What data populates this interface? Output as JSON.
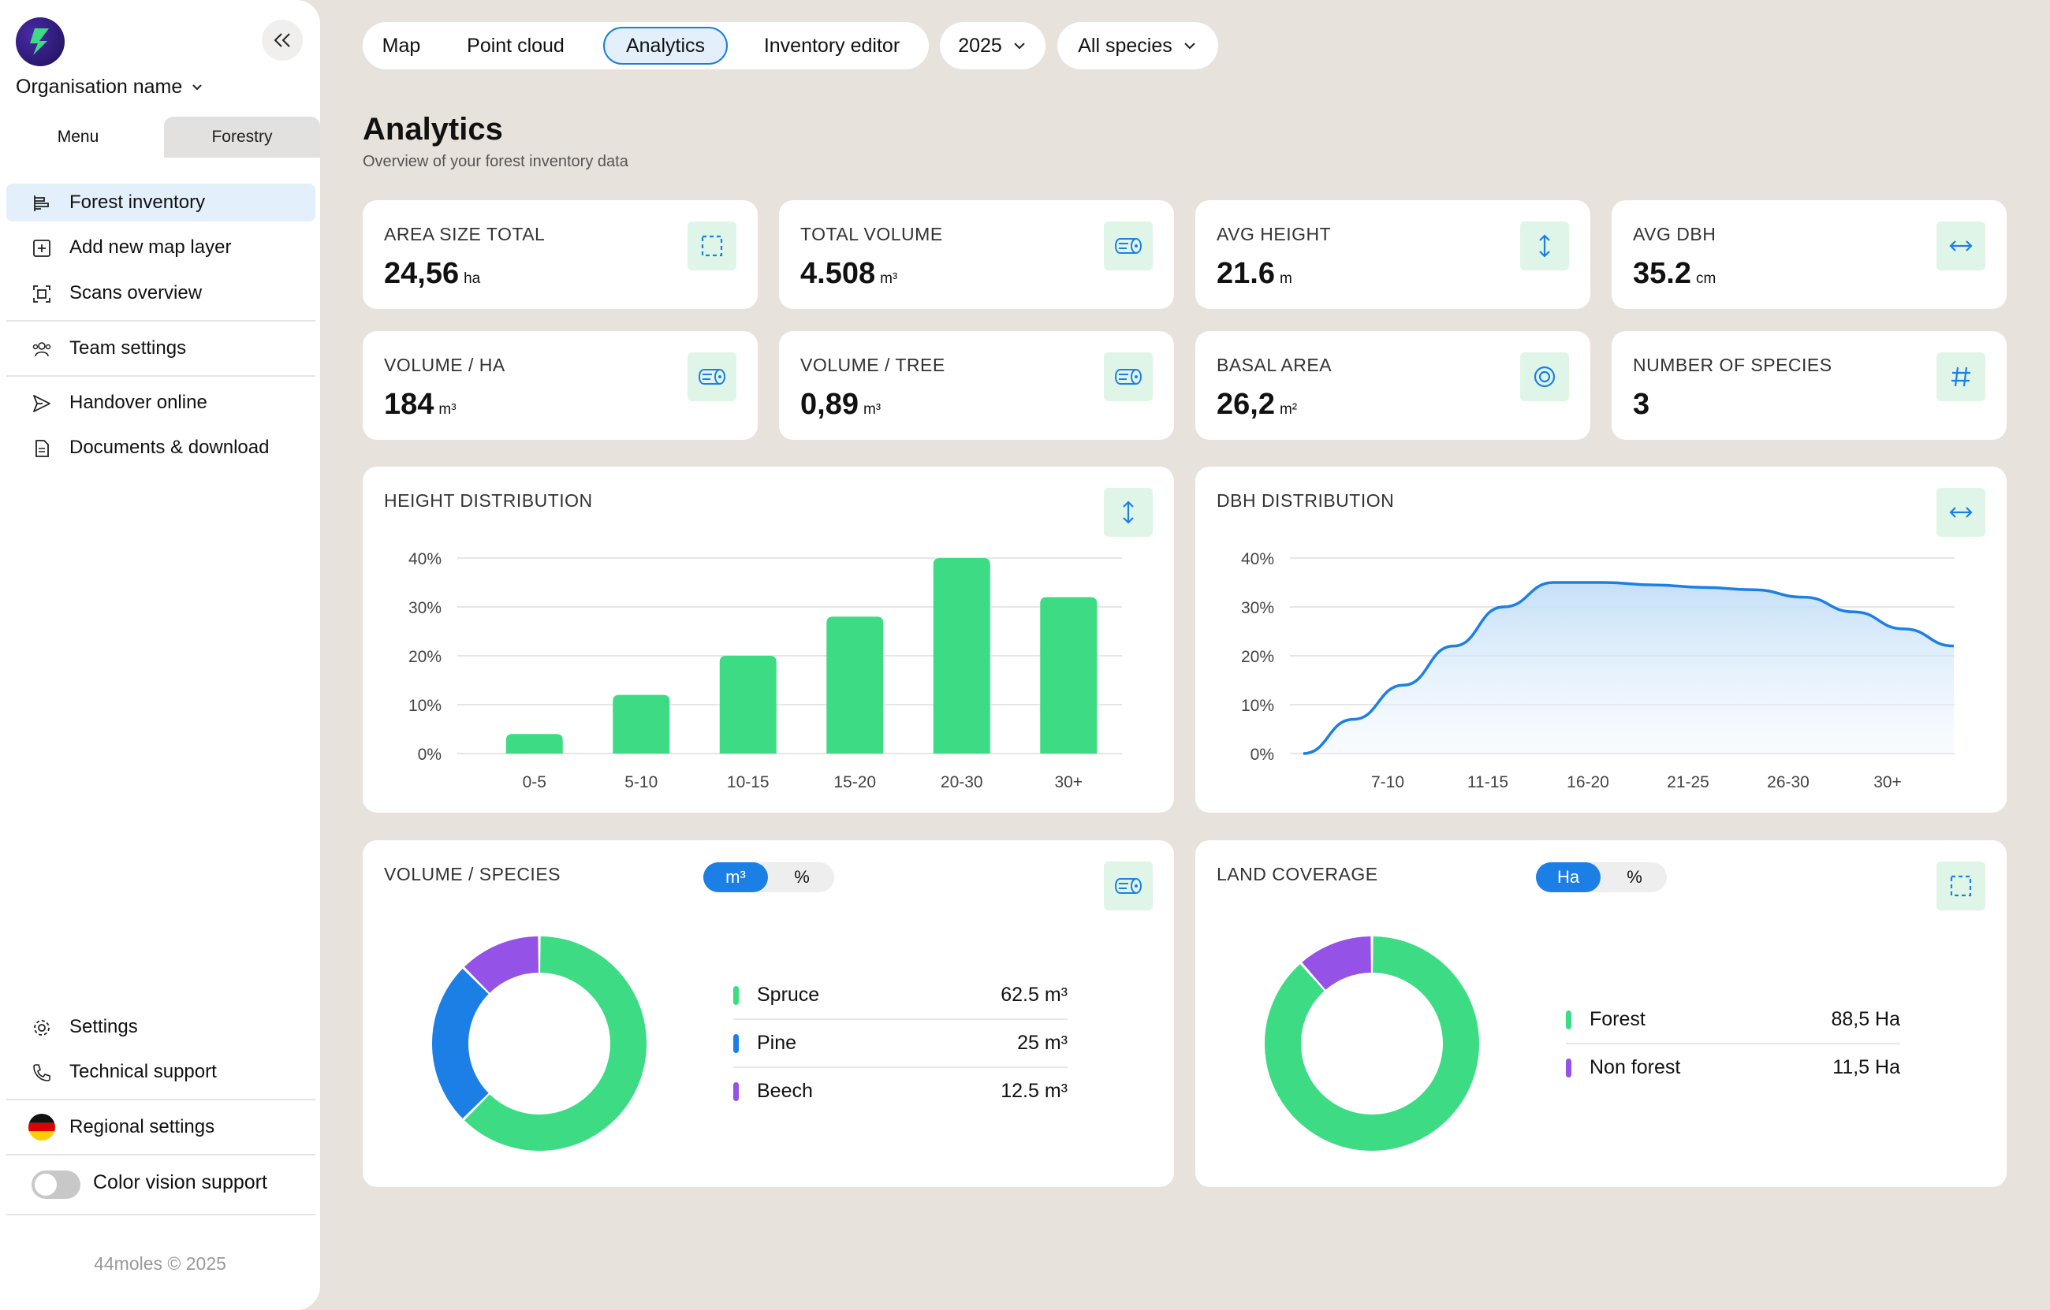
{
  "sidebar": {
    "org_name": "Organisation name",
    "tabs": [
      {
        "label": "Menu"
      },
      {
        "label": "Forestry"
      }
    ],
    "items": [
      {
        "label": "Forest inventory",
        "icon": "forest-inventory-icon"
      },
      {
        "label": "Add new map layer",
        "icon": "add-layer-icon"
      },
      {
        "label": "Scans overview",
        "icon": "scan-icon"
      },
      {
        "label": "Team settings",
        "icon": "team-icon"
      },
      {
        "label": "Handover online",
        "icon": "send-icon"
      },
      {
        "label": "Documents & download",
        "icon": "documents-icon"
      },
      {
        "label": "Settings",
        "icon": "gear-icon"
      },
      {
        "label": "Technical support",
        "icon": "phone-icon"
      },
      {
        "label": "Regional settings",
        "icon": "german-flag-icon"
      },
      {
        "label": "Color vision support",
        "icon": "toggle"
      }
    ],
    "copyright": "44moles © 2025"
  },
  "topnav": {
    "tabs": [
      {
        "label": "Map"
      },
      {
        "label": "Point cloud"
      },
      {
        "label": "Analytics"
      },
      {
        "label": "Inventory editor"
      }
    ],
    "year": "2025",
    "species": "All species"
  },
  "header": {
    "title": "Analytics",
    "subtitle": "Overview of your forest inventory data"
  },
  "stats": [
    {
      "label": "AREA SIZE TOTAL",
      "value": "24,56",
      "unit": "ha",
      "icon": "area-icon"
    },
    {
      "label": "TOTAL VOLUME",
      "value": "4.508",
      "unit": "m³",
      "icon": "log-icon"
    },
    {
      "label": "AVG HEIGHT",
      "value": "21.6",
      "unit": "m",
      "icon": "vertical-arrow-icon"
    },
    {
      "label": "AVG DBH",
      "value": "35.2",
      "unit": "cm",
      "icon": "horizontal-arrow-icon"
    },
    {
      "label": "VOLUME / HA",
      "value": "184",
      "unit": "m³",
      "icon": "log-icon"
    },
    {
      "label": "VOLUME / TREE",
      "value": "0,89",
      "unit": "m³",
      "icon": "log-icon"
    },
    {
      "label": "BASAL AREA",
      "value": "26,2",
      "unit": "m²",
      "icon": "target-icon"
    },
    {
      "label": "NUMBER OF SPECIES",
      "value": "3",
      "unit": "",
      "icon": "hash-icon"
    }
  ],
  "colors": {
    "green": "#3ddc84",
    "blue": "#1c7fe6",
    "purple": "#9452e6",
    "icon_bg": "#dff5e8"
  },
  "height_chart": {
    "title": "HEIGHT DISTRIBUTION",
    "yticks": [
      "40%",
      "30%",
      "20%",
      "10%",
      "0%"
    ]
  },
  "dbh_chart": {
    "title": "DBH DISTRIBUTION",
    "yticks": [
      "40%",
      "30%",
      "20%",
      "10%",
      "0%"
    ]
  },
  "volume_species": {
    "title": "VOLUME / SPECIES",
    "toggle": [
      "m³",
      "%"
    ],
    "rows": [
      {
        "name": "Spruce",
        "value": "62.5 m³"
      },
      {
        "name": "Pine",
        "value": "25 m³"
      },
      {
        "name": "Beech",
        "value": "12.5 m³"
      }
    ]
  },
  "land_coverage": {
    "title": "LAND COVERAGE",
    "toggle": [
      "Ha",
      "%"
    ],
    "rows": [
      {
        "name": "Forest",
        "value": "88,5 Ha"
      },
      {
        "name": "Non forest",
        "value": "11,5 Ha"
      }
    ]
  },
  "chart_data": [
    {
      "type": "bar",
      "title": "HEIGHT DISTRIBUTION",
      "categories": [
        "0-5",
        "5-10",
        "10-15",
        "15-20",
        "20-30",
        "30+"
      ],
      "values": [
        4,
        12,
        20,
        28,
        40,
        32
      ],
      "ylim": [
        0,
        40
      ],
      "yunit": "%",
      "grid": true
    },
    {
      "type": "area",
      "title": "DBH DISTRIBUTION",
      "categories": [
        "7-10",
        "11-15",
        "16-20",
        "21-25",
        "26-30",
        "30+"
      ],
      "x": [
        0,
        0.5,
        1,
        1.5,
        2,
        2.5,
        3,
        3.5,
        4,
        4.5,
        5,
        5.5,
        6,
        6.5
      ],
      "values": [
        0,
        7,
        14,
        22,
        30,
        35,
        35,
        34.5,
        34,
        33.5,
        32,
        29,
        25.5,
        22
      ],
      "ylim": [
        0,
        40
      ],
      "yunit": "%",
      "grid": true
    },
    {
      "type": "pie",
      "title": "VOLUME / SPECIES",
      "categories": [
        "Spruce",
        "Pine",
        "Beech"
      ],
      "values": [
        62.5,
        25,
        12.5
      ],
      "unit": "m³"
    },
    {
      "type": "pie",
      "title": "LAND COVERAGE",
      "categories": [
        "Forest",
        "Non forest"
      ],
      "values": [
        88.5,
        11.5
      ],
      "unit": "Ha"
    }
  ]
}
